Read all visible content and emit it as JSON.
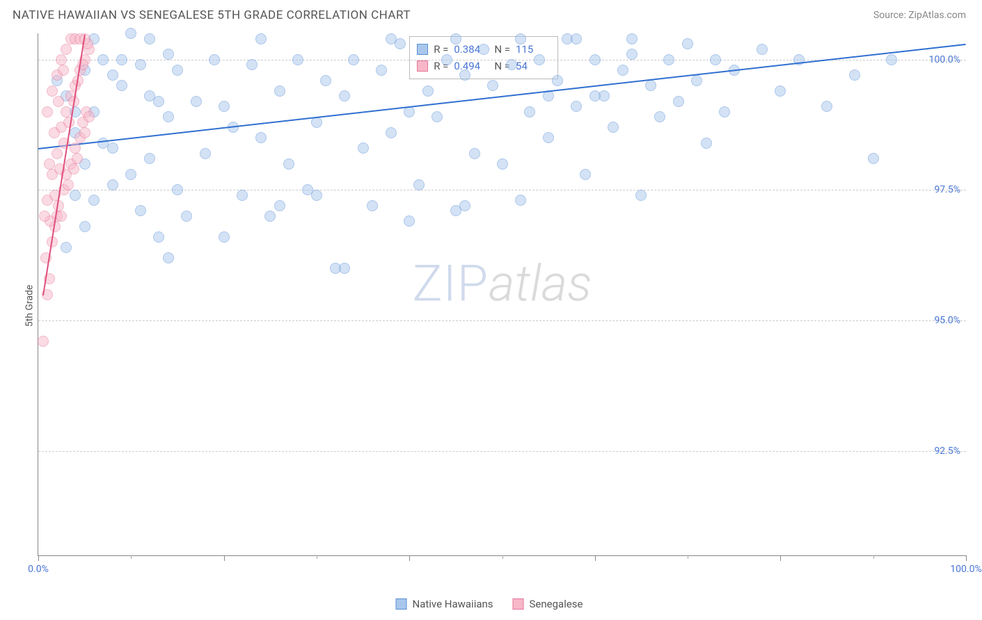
{
  "header": {
    "title": "NATIVE HAWAIIAN VS SENEGALESE 5TH GRADE CORRELATION CHART",
    "source": "Source: ZipAtlas.com"
  },
  "chart": {
    "type": "scatter",
    "ylabel": "5th Grade",
    "xlim": [
      0,
      100
    ],
    "ylim": [
      90.5,
      100.5
    ],
    "xticks_major": [
      0,
      20,
      40,
      60,
      80,
      100
    ],
    "xticks_minor": [
      10,
      30,
      50,
      70,
      90
    ],
    "yticks": [
      {
        "v": 92.5,
        "label": "92.5%"
      },
      {
        "v": 95.0,
        "label": "95.0%"
      },
      {
        "v": 97.5,
        "label": "97.5%"
      },
      {
        "v": 100.0,
        "label": "100.0%"
      }
    ],
    "xlabels": [
      {
        "v": 0,
        "label": "0.0%"
      },
      {
        "v": 100,
        "label": "100.0%"
      }
    ],
    "marker_radius": 8,
    "marker_opacity": 0.5,
    "series": [
      {
        "name": "Native Hawaiians",
        "fill": "#a9c7ec",
        "stroke": "#5b8fd6",
        "trend_color": "#2f6fd0",
        "r": "0.384",
        "n": "115",
        "trend": {
          "x1": 0,
          "y1": 98.3,
          "x2": 100,
          "y2": 100.3
        },
        "points": [
          [
            2,
            99.6
          ],
          [
            4,
            99.0
          ],
          [
            5,
            98.0
          ],
          [
            6,
            97.3
          ],
          [
            7,
            98.4
          ],
          [
            8,
            99.7
          ],
          [
            9,
            100.0
          ],
          [
            10,
            100.5
          ],
          [
            11,
            97.1
          ],
          [
            12,
            99.3
          ],
          [
            13,
            96.6
          ],
          [
            14,
            98.9
          ],
          [
            15,
            99.8
          ],
          [
            16,
            97.0
          ],
          [
            17,
            99.2
          ],
          [
            18,
            98.2
          ],
          [
            19,
            100.0
          ],
          [
            20,
            99.1
          ],
          [
            21,
            98.7
          ],
          [
            22,
            97.4
          ],
          [
            23,
            99.9
          ],
          [
            24,
            98.5
          ],
          [
            25,
            97.0
          ],
          [
            26,
            99.4
          ],
          [
            27,
            98.0
          ],
          [
            28,
            100.0
          ],
          [
            29,
            97.5
          ],
          [
            30,
            98.8
          ],
          [
            31,
            99.6
          ],
          [
            32,
            96.0
          ],
          [
            33,
            99.3
          ],
          [
            34,
            100.0
          ],
          [
            35,
            98.3
          ],
          [
            36,
            97.2
          ],
          [
            37,
            99.8
          ],
          [
            38,
            98.6
          ],
          [
            39,
            100.3
          ],
          [
            40,
            99.0
          ],
          [
            41,
            97.6
          ],
          [
            42,
            99.4
          ],
          [
            43,
            98.9
          ],
          [
            44,
            100.0
          ],
          [
            45,
            97.1
          ],
          [
            46,
            99.7
          ],
          [
            47,
            98.2
          ],
          [
            48,
            100.2
          ],
          [
            49,
            99.5
          ],
          [
            50,
            98.0
          ],
          [
            51,
            99.9
          ],
          [
            52,
            97.3
          ],
          [
            53,
            99.0
          ],
          [
            54,
            100.0
          ],
          [
            55,
            98.5
          ],
          [
            56,
            99.6
          ],
          [
            57,
            100.4
          ],
          [
            58,
            99.1
          ],
          [
            59,
            97.8
          ],
          [
            60,
            100.0
          ],
          [
            61,
            99.3
          ],
          [
            62,
            98.7
          ],
          [
            63,
            99.8
          ],
          [
            64,
            100.1
          ],
          [
            65,
            97.4
          ],
          [
            66,
            99.5
          ],
          [
            67,
            98.9
          ],
          [
            68,
            100.0
          ],
          [
            69,
            99.2
          ],
          [
            70,
            100.3
          ],
          [
            71,
            99.6
          ],
          [
            72,
            98.4
          ],
          [
            73,
            100.0
          ],
          [
            74,
            99.0
          ],
          [
            75,
            99.8
          ],
          [
            78,
            100.2
          ],
          [
            80,
            99.4
          ],
          [
            82,
            100.0
          ],
          [
            85,
            99.1
          ],
          [
            88,
            99.7
          ],
          [
            90,
            98.1
          ],
          [
            92,
            100.0
          ],
          [
            24,
            100.4
          ],
          [
            6,
            100.4
          ],
          [
            12,
            100.4
          ],
          [
            45,
            100.4
          ],
          [
            38,
            100.4
          ],
          [
            52,
            100.4
          ],
          [
            58,
            100.4
          ],
          [
            64,
            100.4
          ],
          [
            55,
            99.3
          ],
          [
            60,
            99.3
          ],
          [
            4,
            97.4
          ],
          [
            8,
            97.6
          ],
          [
            26,
            97.2
          ],
          [
            30,
            97.4
          ],
          [
            40,
            96.9
          ],
          [
            46,
            97.2
          ],
          [
            3,
            96.4
          ],
          [
            5,
            96.8
          ],
          [
            14,
            96.2
          ],
          [
            20,
            96.6
          ],
          [
            33,
            96.0
          ],
          [
            3,
            99.3
          ],
          [
            4,
            98.6
          ],
          [
            5,
            99.8
          ],
          [
            6,
            99.0
          ],
          [
            7,
            100.0
          ],
          [
            8,
            98.3
          ],
          [
            9,
            99.5
          ],
          [
            10,
            97.8
          ],
          [
            11,
            99.9
          ],
          [
            12,
            98.1
          ],
          [
            13,
            99.2
          ],
          [
            14,
            100.1
          ],
          [
            15,
            97.5
          ]
        ]
      },
      {
        "name": "Senegalese",
        "fill": "#f7b7c9",
        "stroke": "#e57597",
        "trend_color": "#e04f7c",
        "r": "0.494",
        "n": "54",
        "trend": {
          "x1": 0.5,
          "y1": 95.5,
          "x2": 5,
          "y2": 100.5
        },
        "points": [
          [
            0.5,
            94.6
          ],
          [
            1.0,
            95.5
          ],
          [
            1.2,
            95.8
          ],
          [
            1.5,
            96.5
          ],
          [
            1.8,
            96.8
          ],
          [
            2.0,
            97.0
          ],
          [
            2.2,
            97.2
          ],
          [
            2.5,
            97.0
          ],
          [
            2.8,
            97.5
          ],
          [
            3.0,
            97.8
          ],
          [
            3.2,
            97.6
          ],
          [
            3.5,
            98.0
          ],
          [
            3.8,
            97.9
          ],
          [
            4.0,
            98.3
          ],
          [
            4.2,
            98.1
          ],
          [
            4.5,
            98.5
          ],
          [
            4.8,
            98.8
          ],
          [
            5.0,
            98.6
          ],
          [
            5.2,
            99.0
          ],
          [
            5.5,
            98.9
          ],
          [
            1.0,
            97.3
          ],
          [
            1.5,
            97.8
          ],
          [
            2.0,
            98.2
          ],
          [
            2.5,
            98.7
          ],
          [
            3.0,
            99.0
          ],
          [
            3.5,
            99.3
          ],
          [
            4.0,
            99.5
          ],
          [
            4.5,
            99.8
          ],
          [
            5.0,
            100.0
          ],
          [
            5.5,
            100.2
          ],
          [
            0.8,
            96.2
          ],
          [
            1.3,
            96.9
          ],
          [
            1.8,
            97.4
          ],
          [
            2.3,
            97.9
          ],
          [
            2.8,
            98.4
          ],
          [
            3.3,
            98.8
          ],
          [
            3.8,
            99.2
          ],
          [
            4.3,
            99.6
          ],
          [
            4.8,
            99.9
          ],
          [
            5.3,
            100.3
          ],
          [
            1.0,
            99.0
          ],
          [
            1.5,
            99.4
          ],
          [
            2.0,
            99.7
          ],
          [
            2.5,
            100.0
          ],
          [
            3.0,
            100.2
          ],
          [
            3.5,
            100.4
          ],
          [
            4.0,
            100.4
          ],
          [
            4.5,
            100.4
          ],
          [
            5.0,
            100.4
          ],
          [
            0.7,
            97.0
          ],
          [
            1.2,
            98.0
          ],
          [
            1.7,
            98.6
          ],
          [
            2.2,
            99.2
          ],
          [
            2.7,
            99.8
          ]
        ]
      }
    ],
    "watermark": {
      "part1": "ZIP",
      "part2": "atlas"
    },
    "background_color": "#ffffff",
    "grid_color": "#cccccc"
  },
  "legend": {
    "items": [
      {
        "label": "Native Hawaiians",
        "fill": "#a9c7ec",
        "stroke": "#5b8fd6"
      },
      {
        "label": "Senegalese",
        "fill": "#f7b7c9",
        "stroke": "#e57597"
      }
    ]
  }
}
